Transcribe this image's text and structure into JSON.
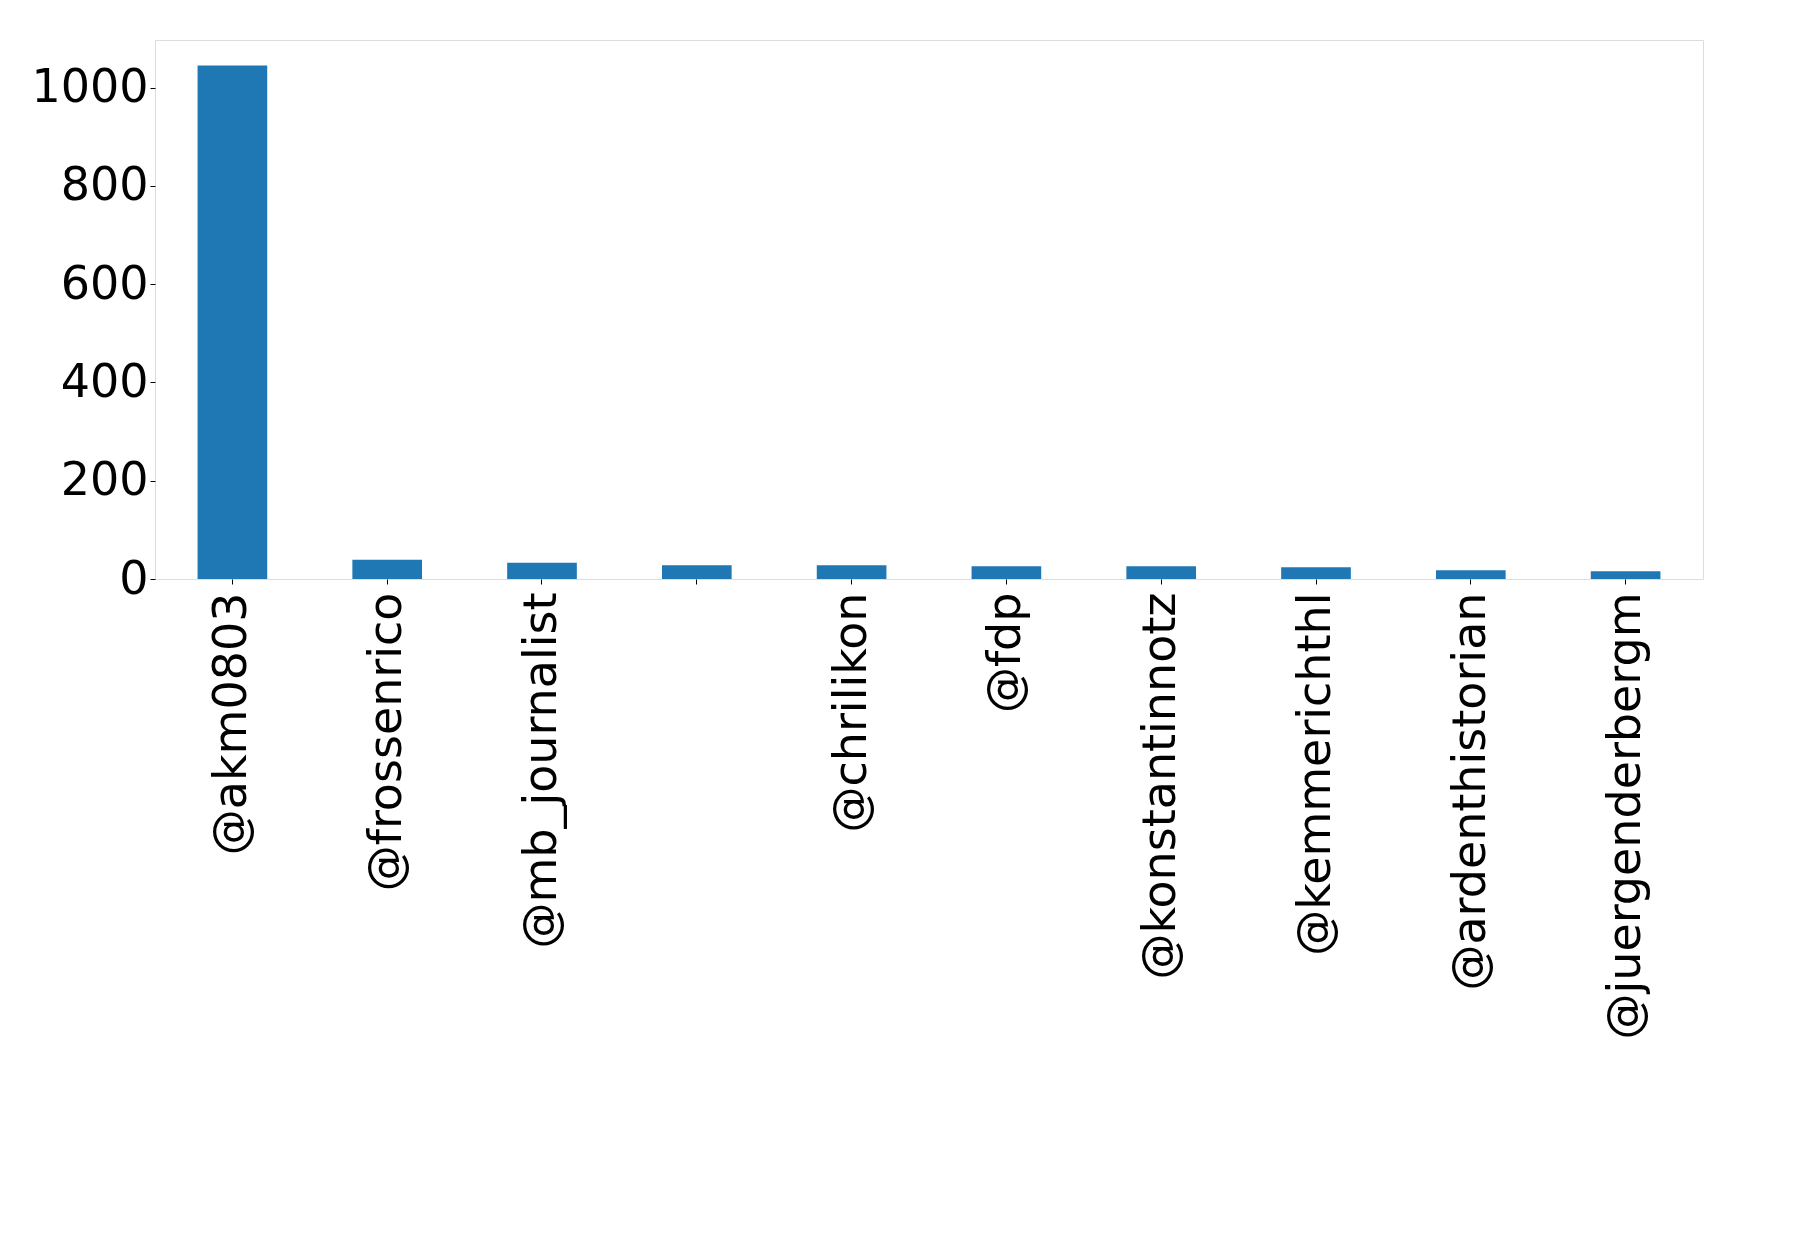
{
  "chart_data": {
    "type": "bar",
    "categories": [
      "@akm0803",
      "@frossenrico",
      "@mb_journalist",
      null,
      "@chrilikon",
      "@fdp",
      "@konstantinnotz",
      "@kemmerichthl",
      "@ardenthistorian",
      "@juergenderbergm"
    ],
    "values": [
      1045,
      39,
      33,
      28,
      28,
      26,
      26,
      24,
      18,
      16
    ],
    "color": "#1f77b4",
    "ylim": [
      0,
      1097
    ],
    "yticks": [
      0,
      200,
      400,
      600,
      800,
      1000
    ],
    "grid": false
  }
}
